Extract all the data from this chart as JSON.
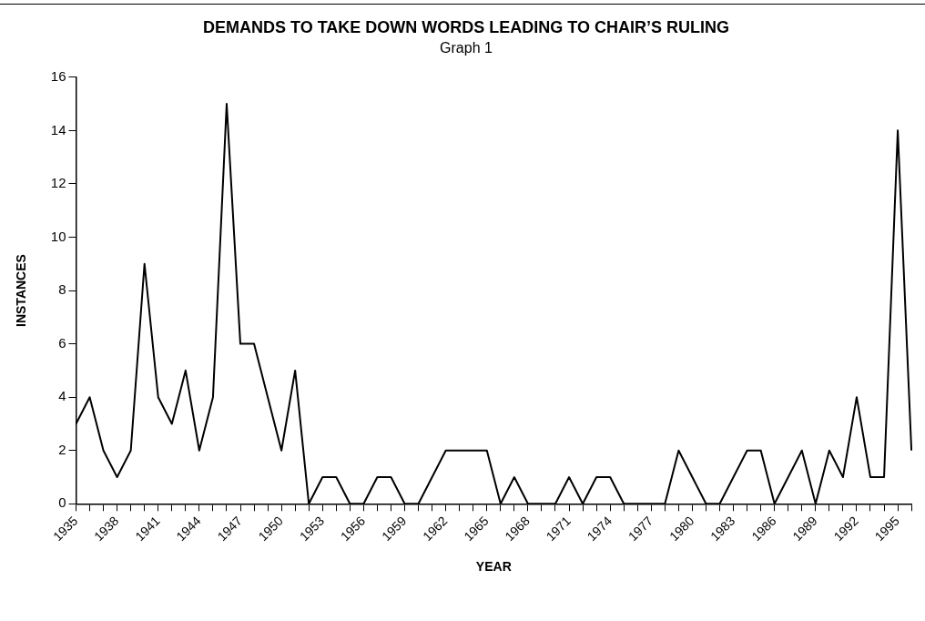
{
  "chart_data": {
    "type": "line",
    "title": "DEMANDS TO TAKE DOWN WORDS LEADING TO CHAIR’S RULING",
    "subtitle": "Graph 1",
    "xlabel": "YEAR",
    "ylabel": "INSTANCES",
    "categories": [
      "1935",
      null,
      null,
      "1938",
      null,
      null,
      "1941",
      null,
      null,
      "1944",
      null,
      null,
      "1947",
      null,
      null,
      "1950",
      null,
      null,
      "1953",
      null,
      null,
      "1956",
      null,
      null,
      "1959",
      null,
      null,
      "1962",
      null,
      null,
      "1965",
      null,
      null,
      "1968",
      null,
      null,
      "1971",
      null,
      null,
      "1974",
      null,
      null,
      "1977",
      null,
      null,
      "1980",
      null,
      null,
      "1983",
      null,
      null,
      "1986",
      null,
      null,
      "1989",
      null,
      null,
      "1992",
      null,
      null,
      "1995",
      null
    ],
    "values": [
      3,
      4,
      2,
      1,
      2,
      9,
      4,
      3,
      5,
      2,
      4,
      15,
      6,
      6,
      4,
      2,
      5,
      0,
      1,
      1,
      0,
      0,
      1,
      1,
      0,
      0,
      1,
      2,
      2,
      2,
      2,
      0,
      1,
      0,
      0,
      0,
      1,
      0,
      1,
      1,
      0,
      0,
      0,
      0,
      2,
      1,
      0,
      0,
      1,
      2,
      2,
      0,
      1,
      2,
      0,
      2,
      1,
      4,
      1,
      1,
      14,
      2
    ],
    "color": "#000000",
    "ylim": [
      0,
      16
    ],
    "yticks": [
      0,
      2,
      4,
      6,
      8,
      10,
      12,
      14,
      16
    ],
    "marker": "none"
  }
}
